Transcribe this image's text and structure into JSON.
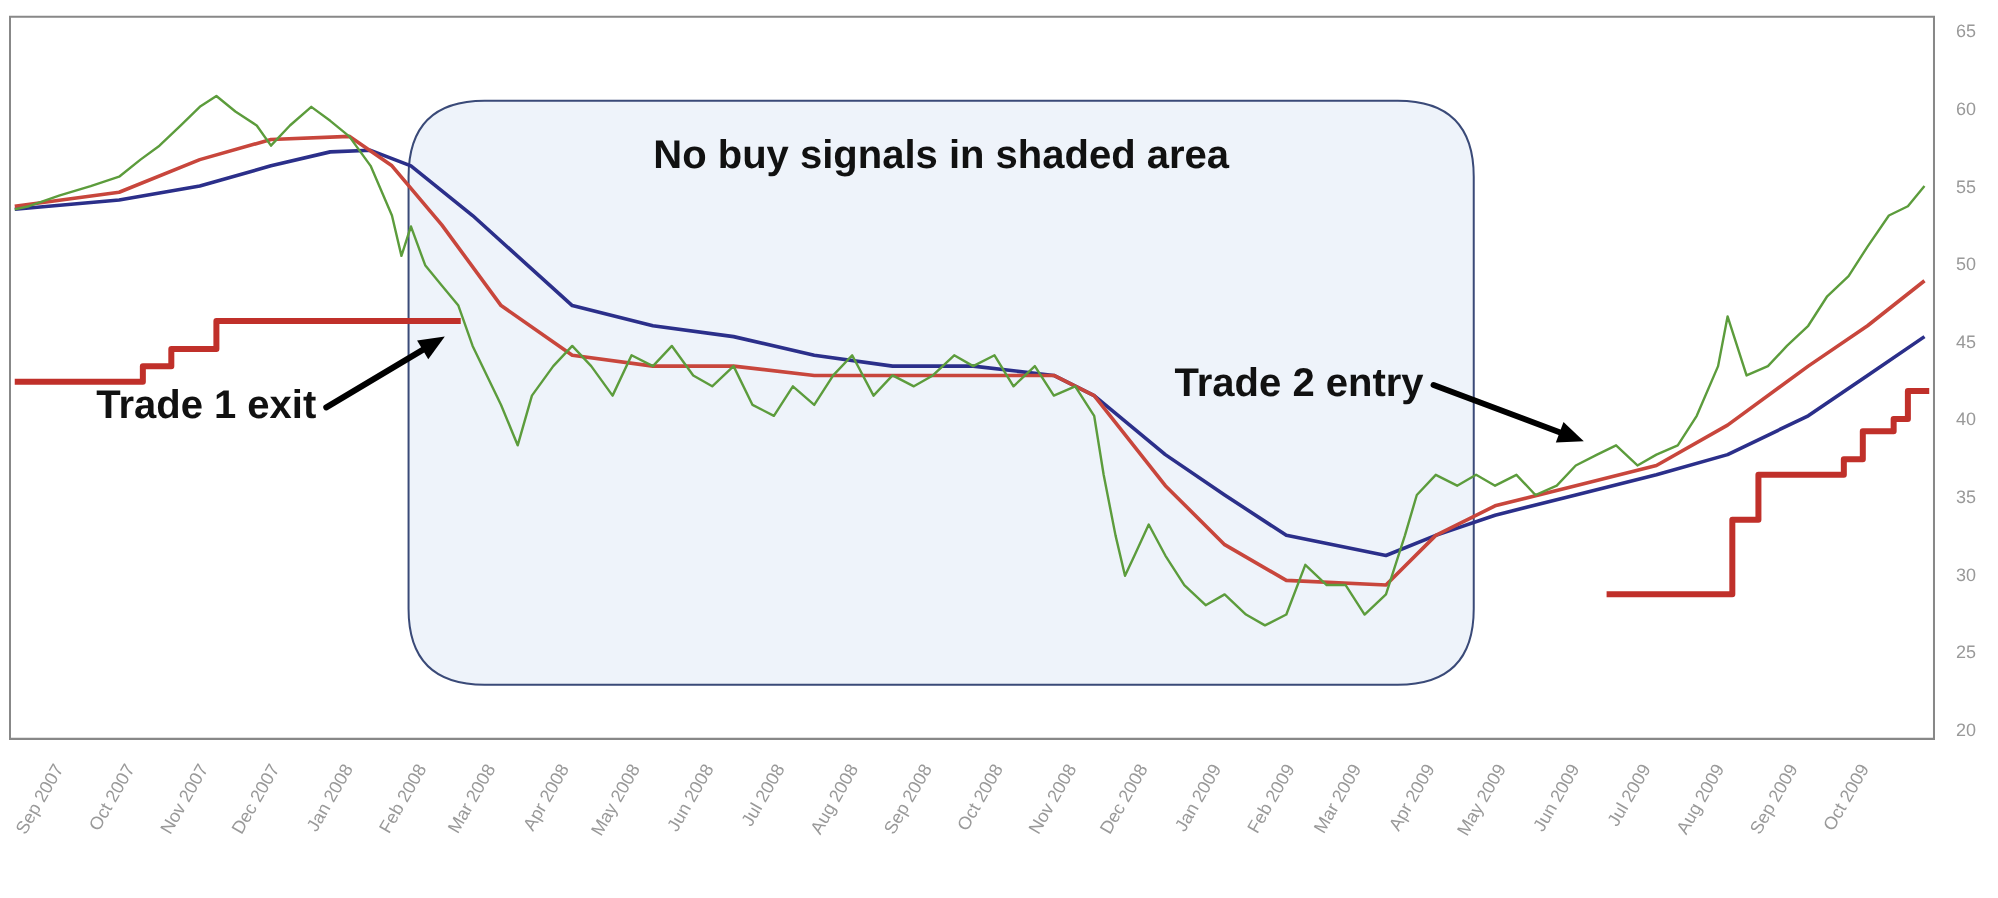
{
  "chart_data": {
    "type": "line",
    "xlim": [
      "2007-08-11",
      "2009-10-30"
    ],
    "ylim": [
      19.5,
      66
    ],
    "xticks": [
      {
        "value": "2007-09",
        "label": "Sep 2007"
      },
      {
        "value": "2007-10",
        "label": "Oct 2007"
      },
      {
        "value": "2007-11",
        "label": "Nov 2007"
      },
      {
        "value": "2007-12",
        "label": "Dec 2007"
      },
      {
        "value": "2008-01",
        "label": "Jan 2008"
      },
      {
        "value": "2008-02",
        "label": "Feb 2008"
      },
      {
        "value": "2008-03",
        "label": "Mar 2008"
      },
      {
        "value": "2008-04",
        "label": "Apr 2008"
      },
      {
        "value": "2008-05",
        "label": "May 2008"
      },
      {
        "value": "2008-06",
        "label": "Jun 2008"
      },
      {
        "value": "2008-07",
        "label": "Jul 2008"
      },
      {
        "value": "2008-08",
        "label": "Aug 2008"
      },
      {
        "value": "2008-09",
        "label": "Sep 2008"
      },
      {
        "value": "2008-10",
        "label": "Oct 2008"
      },
      {
        "value": "2008-11",
        "label": "Nov 2008"
      },
      {
        "value": "2008-12",
        "label": "Dec 2008"
      },
      {
        "value": "2009-01",
        "label": "Jan 2009"
      },
      {
        "value": "2009-02",
        "label": "Feb 2009"
      },
      {
        "value": "2009-03",
        "label": "Mar 2009"
      },
      {
        "value": "2009-04",
        "label": "Apr 2009"
      },
      {
        "value": "2009-05",
        "label": "May 2009"
      },
      {
        "value": "2009-06",
        "label": "Jun 2009"
      },
      {
        "value": "2009-07",
        "label": "Jul 2009"
      },
      {
        "value": "2009-08",
        "label": "Aug 2009"
      },
      {
        "value": "2009-09",
        "label": "Sep 2009"
      },
      {
        "value": "2009-10",
        "label": "Oct 2009"
      }
    ],
    "yticks": [
      20,
      25,
      30,
      35,
      40,
      45,
      50,
      55,
      60,
      65
    ],
    "series": [
      {
        "color": "#5c9c3c",
        "x": [
          "2007-08-13",
          "2007-08-19",
          "2007-09-01",
          "2007-09-14",
          "2007-09-26",
          "2007-10-05",
          "2007-10-13",
          "2007-10-22",
          "2007-10-30",
          "2007-11-06",
          "2007-11-14",
          "2007-11-23",
          "2007-11-29",
          "2007-12-07",
          "2007-12-16",
          "2007-12-24",
          "2008-01-01",
          "2008-01-10",
          "2008-01-19",
          "2008-01-23",
          "2008-01-27",
          "2008-02-02",
          "2008-02-09",
          "2008-02-16",
          "2008-02-22",
          "2008-02-28",
          "2008-03-05",
          "2008-03-12",
          "2008-03-18",
          "2008-03-27",
          "2008-04-04",
          "2008-04-12",
          "2008-04-21",
          "2008-04-29",
          "2008-05-08",
          "2008-05-16",
          "2008-05-25",
          "2008-06-02",
          "2008-06-11",
          "2008-06-19",
          "2008-06-28",
          "2008-07-06",
          "2008-07-15",
          "2008-07-23",
          "2008-07-31",
          "2008-08-09",
          "2008-08-17",
          "2008-08-26",
          "2008-09-03",
          "2008-09-12",
          "2008-09-20",
          "2008-09-29",
          "2008-10-07",
          "2008-10-16",
          "2008-10-24",
          "2008-11-02",
          "2008-11-10",
          "2008-11-14",
          "2008-11-19",
          "2008-11-23",
          "2008-11-27",
          "2008-12-03",
          "2008-12-10",
          "2008-12-18",
          "2008-12-27",
          "2009-01-04",
          "2009-01-13",
          "2009-01-21",
          "2009-01-30",
          "2009-02-07",
          "2009-02-16",
          "2009-02-24",
          "2009-03-04",
          "2009-03-13",
          "2009-03-21",
          "2009-03-26",
          "2009-04-03",
          "2009-04-12",
          "2009-04-20",
          "2009-04-28",
          "2009-05-07",
          "2009-05-15",
          "2009-05-24",
          "2009-06-01",
          "2009-06-10",
          "2009-06-18",
          "2009-06-27",
          "2009-07-05",
          "2009-07-14",
          "2009-07-22",
          "2009-07-31",
          "2009-08-04",
          "2009-08-12",
          "2009-08-21",
          "2009-08-29",
          "2009-09-07",
          "2009-09-15",
          "2009-09-24",
          "2009-10-02",
          "2009-10-11",
          "2009-10-19",
          "2009-10-26"
        ],
        "values": [
          53.6,
          53.8,
          54.5,
          55.1,
          55.7,
          56.8,
          57.7,
          59.0,
          60.2,
          60.9,
          59.9,
          59.0,
          57.7,
          59.0,
          60.2,
          59.3,
          58.3,
          56.4,
          53.2,
          50.6,
          52.5,
          50.0,
          48.7,
          47.4,
          44.8,
          42.9,
          41.0,
          38.4,
          41.6,
          43.5,
          44.8,
          43.5,
          41.6,
          44.2,
          43.5,
          44.8,
          42.9,
          42.2,
          43.5,
          41.0,
          40.3,
          42.2,
          41.0,
          42.9,
          44.2,
          41.6,
          42.9,
          42.2,
          42.9,
          44.2,
          43.5,
          44.2,
          42.2,
          43.5,
          41.6,
          42.2,
          40.3,
          36.5,
          32.6,
          30.0,
          31.3,
          33.3,
          31.3,
          29.4,
          28.1,
          28.8,
          27.5,
          26.8,
          27.5,
          30.7,
          29.4,
          29.4,
          27.5,
          28.8,
          32.6,
          35.2,
          36.5,
          35.8,
          36.5,
          35.8,
          36.5,
          35.2,
          35.8,
          37.1,
          37.8,
          38.4,
          37.1,
          37.8,
          38.4,
          40.3,
          43.5,
          46.7,
          42.9,
          43.5,
          44.8,
          46.1,
          48.0,
          49.3,
          51.2,
          53.2,
          53.8,
          55.1
        ]
      },
      {
        "color": "#c8463c",
        "x": [
          "2007-08-13",
          "2007-09-26",
          "2007-10-30",
          "2007-11-29",
          "2008-01-01",
          "2008-01-19",
          "2008-02-09",
          "2008-03-05",
          "2008-04-04",
          "2008-05-08",
          "2008-06-11",
          "2008-07-15",
          "2008-08-17",
          "2008-09-20",
          "2008-10-24",
          "2008-11-10",
          "2008-12-10",
          "2009-01-04",
          "2009-01-30",
          "2009-03-13",
          "2009-04-03",
          "2009-04-28",
          "2009-06-01",
          "2009-07-05",
          "2009-08-04",
          "2009-09-07",
          "2009-10-02",
          "2009-10-26"
        ],
        "values": [
          53.8,
          54.7,
          56.8,
          58.1,
          58.3,
          56.4,
          52.6,
          47.4,
          44.2,
          43.5,
          43.5,
          42.9,
          42.9,
          42.9,
          42.9,
          41.6,
          35.8,
          32.0,
          29.7,
          29.4,
          32.6,
          34.5,
          35.8,
          37.1,
          39.7,
          43.5,
          46.1,
          49.0
        ]
      },
      {
        "color": "#2b2f8a",
        "x": [
          "2007-08-13",
          "2007-09-26",
          "2007-10-30",
          "2007-11-29",
          "2007-12-24",
          "2008-01-10",
          "2008-01-27",
          "2008-02-22",
          "2008-04-04",
          "2008-05-08",
          "2008-06-11",
          "2008-07-15",
          "2008-08-17",
          "2008-09-20",
          "2008-10-24",
          "2008-11-10",
          "2008-12-10",
          "2009-01-04",
          "2009-01-30",
          "2009-03-13",
          "2009-04-03",
          "2009-04-28",
          "2009-06-01",
          "2009-07-05",
          "2009-08-04",
          "2009-09-07",
          "2009-10-02",
          "2009-10-26"
        ],
        "values": [
          53.6,
          54.2,
          55.1,
          56.4,
          57.3,
          57.4,
          56.4,
          53.2,
          47.4,
          46.1,
          45.4,
          44.2,
          43.5,
          43.5,
          42.9,
          41.6,
          37.8,
          35.2,
          32.6,
          31.3,
          32.6,
          33.9,
          35.2,
          36.5,
          37.8,
          40.3,
          42.9,
          45.4
        ]
      },
      {
        "type": "step",
        "color": "#c0302a",
        "x": [
          "2007-08-13",
          "2007-10-06",
          "2007-10-18",
          "2007-11-06",
          "2008-02-17",
          "2008-02-18",
          "2009-06-14",
          "2009-08-06",
          "2009-08-17",
          "2009-09-22",
          "2009-09-30",
          "2009-10-13",
          "2009-10-19",
          "2009-10-28"
        ],
        "values": [
          42.5,
          43.5,
          44.6,
          46.4,
          46.4,
          null,
          28.8,
          33.6,
          36.5,
          37.5,
          39.3,
          40.1,
          41.9,
          41.9
        ]
      }
    ],
    "bands": [
      {
        "axis": "x",
        "from": "2008-01-26",
        "to": "2009-04-19",
        "label": "No buy signals in shaded area",
        "color": "#eef3fa"
      }
    ],
    "annotations": [
      "Trade 1 exit",
      "Trade 2 entry"
    ]
  }
}
